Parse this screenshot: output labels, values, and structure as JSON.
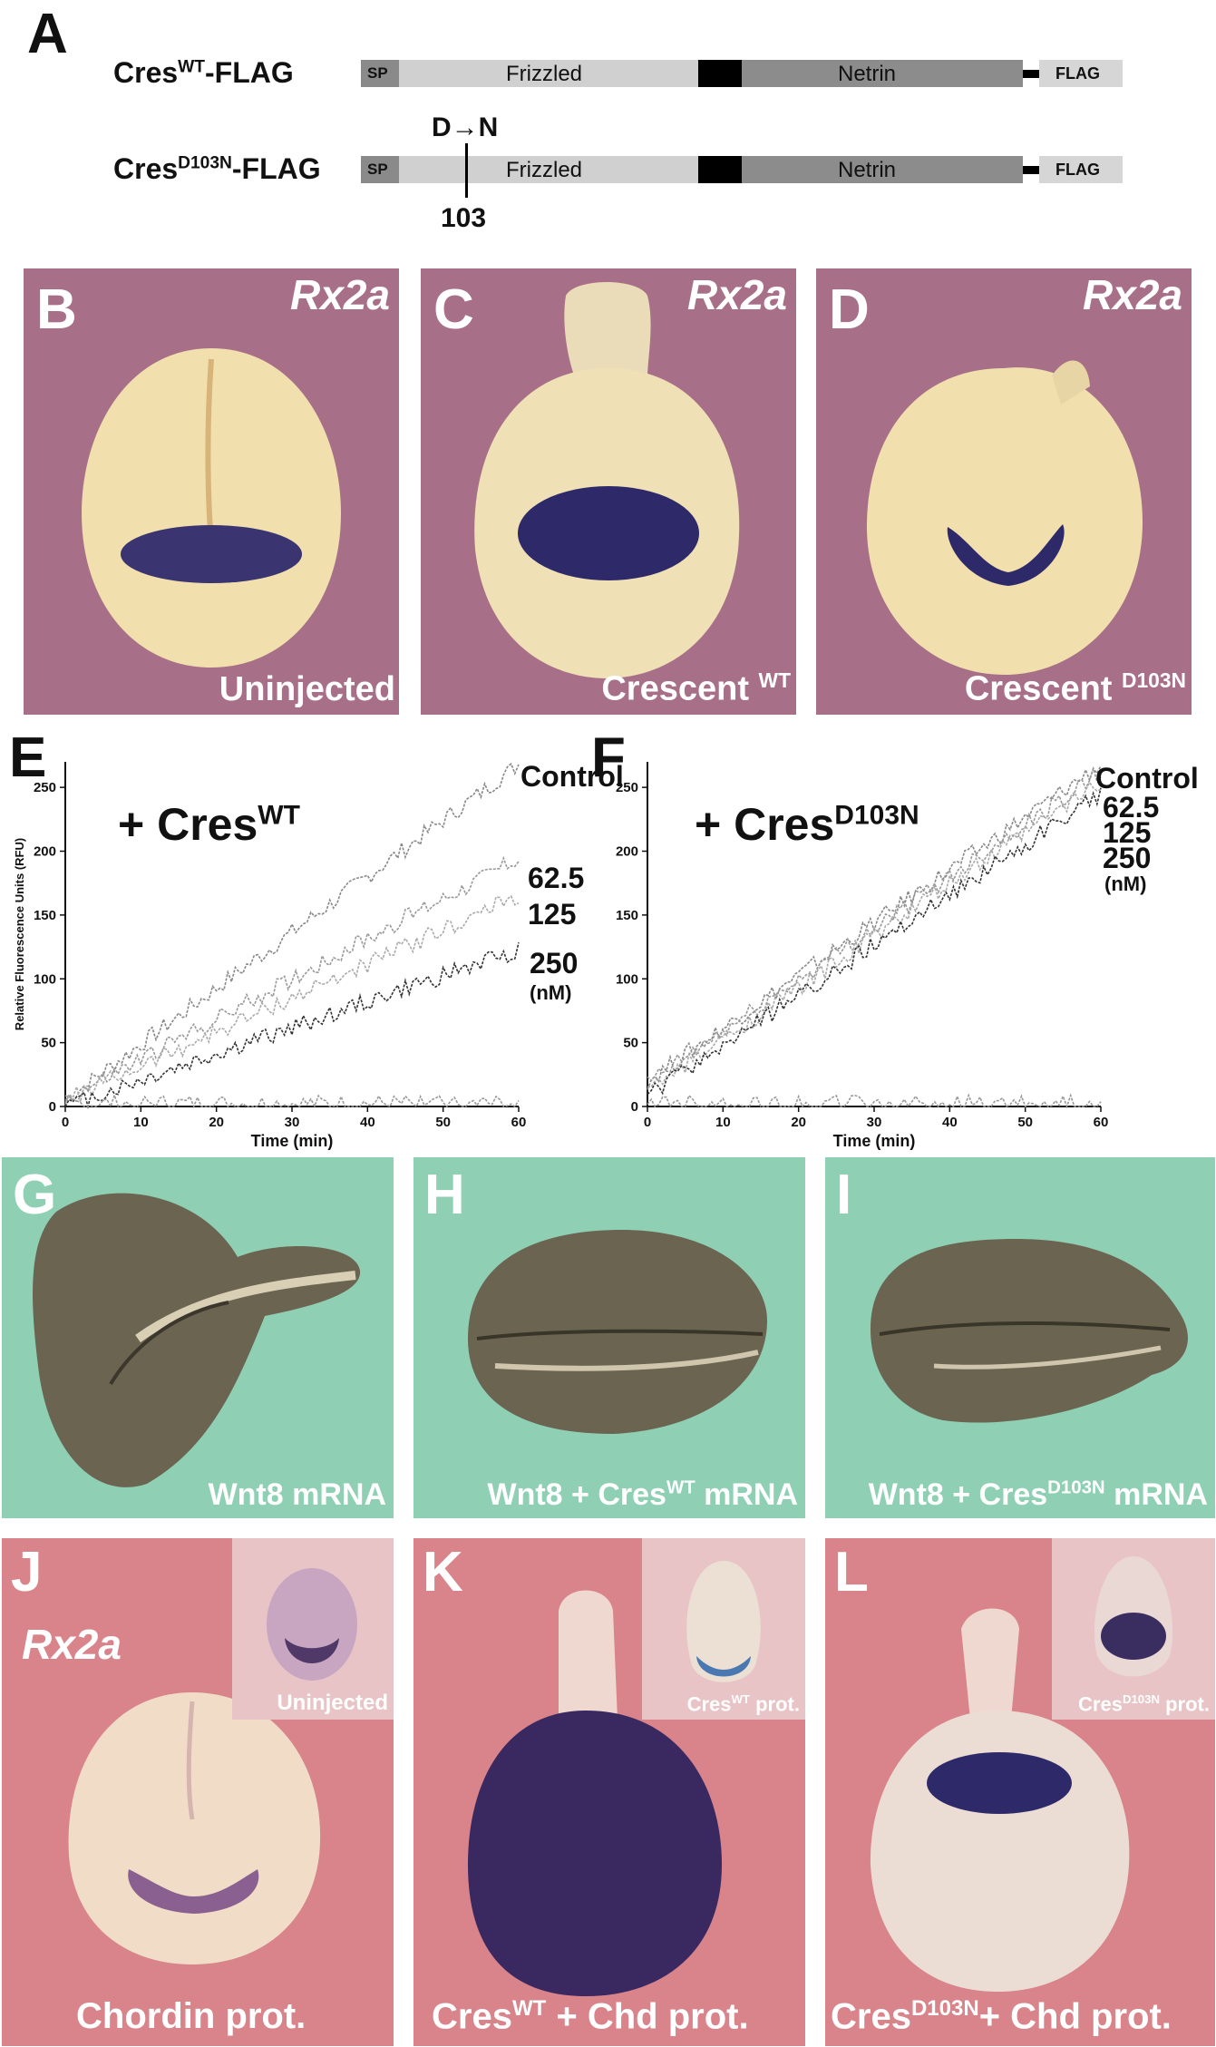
{
  "panelA": {
    "letter": "A",
    "row1_label": "Cres",
    "row1_sup": "WT",
    "row1_suffix": "-FLAG",
    "row2_label": "Cres",
    "row2_sup": "D103N",
    "row2_suffix": "-FLAG",
    "domain_sp": "SP",
    "domain_frizzled": "Frizzled",
    "domain_netrin": "Netrin",
    "domain_flag": "FLAG",
    "mutation": "D→N",
    "position": "103"
  },
  "rowBD": {
    "gene": "Rx2a",
    "panels": [
      {
        "letter": "B",
        "caption": "Uninjected",
        "caption_sup": ""
      },
      {
        "letter": "C",
        "caption": "Crescent ",
        "caption_sup": "WT"
      },
      {
        "letter": "D",
        "caption": "Crescent ",
        "caption_sup": "D103N"
      }
    ]
  },
  "chart_data": [
    {
      "type": "line",
      "panel": "E",
      "title_main": "+ Cres",
      "title_sup": "WT",
      "xlabel": "Time (min)",
      "ylabel": "Relative Fluorescence Units (RFU)",
      "xlim": [
        0,
        60
      ],
      "ylim": [
        0,
        270
      ],
      "xticks": [
        0,
        10,
        20,
        30,
        40,
        50,
        60
      ],
      "yticks": [
        0,
        50,
        100,
        150,
        200,
        250
      ],
      "labels": [
        "Control",
        "62.5",
        "125",
        "250",
        "(nM)"
      ],
      "series": [
        {
          "name": "Control",
          "x": [
            0,
            60
          ],
          "y": [
            5,
            268
          ]
        },
        {
          "name": "62.5",
          "x": [
            0,
            60
          ],
          "y": [
            5,
            195
          ]
        },
        {
          "name": "125",
          "x": [
            0,
            60
          ],
          "y": [
            5,
            165
          ]
        },
        {
          "name": "250",
          "x": [
            0,
            60
          ],
          "y": [
            0,
            123
          ]
        },
        {
          "x": [
            0,
            60
          ],
          "y": [
            2,
            2
          ]
        }
      ]
    },
    {
      "type": "line",
      "panel": "F",
      "title_main": "+ Cres",
      "title_sup": "D103N",
      "xlabel": "Time (min)",
      "ylabel": "",
      "xlim": [
        0,
        60
      ],
      "ylim": [
        0,
        270
      ],
      "xticks": [
        0,
        10,
        20,
        30,
        40,
        50,
        60
      ],
      "yticks": [
        0,
        50,
        100,
        150,
        200,
        250
      ],
      "labels": [
        "Control",
        "62.5",
        "125",
        "250",
        "(nM)"
      ],
      "series": [
        {
          "name": "Control",
          "x": [
            0,
            60
          ],
          "y": [
            20,
            268
          ]
        },
        {
          "name": "62.5",
          "x": [
            0,
            60
          ],
          "y": [
            18,
            262
          ]
        },
        {
          "name": "125",
          "x": [
            0,
            60
          ],
          "y": [
            12,
            255
          ]
        },
        {
          "name": "250",
          "x": [
            0,
            60
          ],
          "y": [
            8,
            245
          ]
        },
        {
          "x": [
            0,
            60
          ],
          "y": [
            2,
            2
          ]
        }
      ]
    }
  ],
  "rowGI": {
    "panels": [
      {
        "letter": "G",
        "caption": "Wnt8 mRNA",
        "pre": "",
        "sup": "",
        "post": ""
      },
      {
        "letter": "H",
        "caption": "",
        "pre": "Wnt8 + Cres",
        "sup": "WT",
        "post": " mRNA"
      },
      {
        "letter": "I",
        "caption": "",
        "pre": "Wnt8 + Cres",
        "sup": "D103N",
        "post": " mRNA"
      }
    ]
  },
  "rowJL": {
    "gene": "Rx2a",
    "panels": [
      {
        "letter": "J",
        "pre": "Chordin prot.",
        "sup": "",
        "post": "",
        "inset_pre": "Uninjected",
        "inset_sup": "",
        "inset_post": ""
      },
      {
        "letter": "K",
        "pre": "Cres",
        "sup": "WT",
        "post": " + Chd prot.",
        "inset_pre": "Cres",
        "inset_sup": "WT",
        "inset_post": " prot."
      },
      {
        "letter": "L",
        "pre": "Cres",
        "sup": "D103N",
        "post": "+ Chd prot.",
        "inset_pre": "Cres",
        "inset_sup": "D103N",
        "inset_post": " prot."
      }
    ]
  },
  "colors": {
    "mauve": "#a87088",
    "green": "#8fd0b4",
    "pink": "#d8848a",
    "stain": "#2e2a6a"
  }
}
